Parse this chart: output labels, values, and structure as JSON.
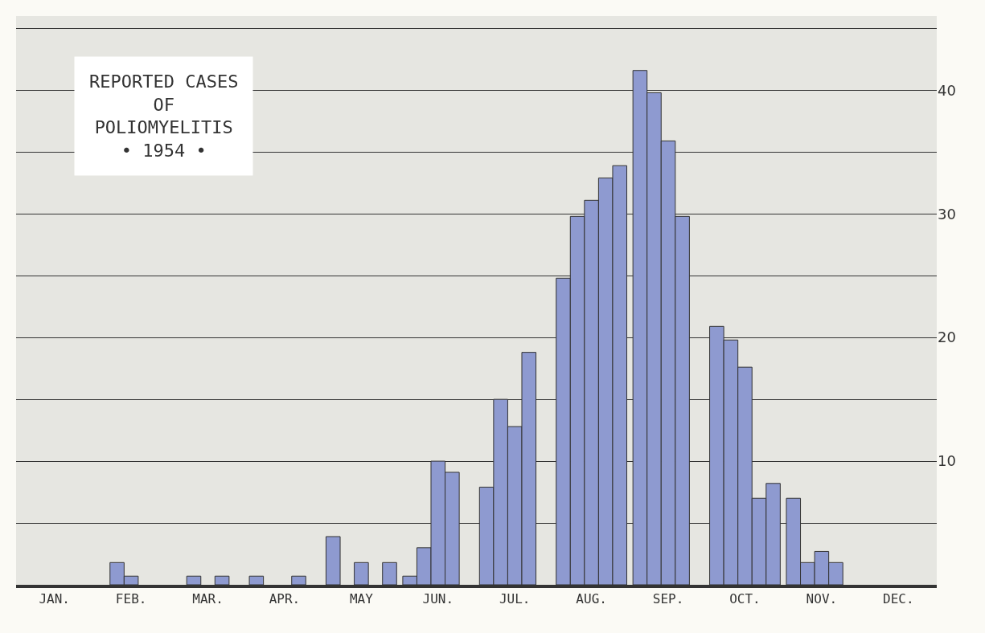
{
  "chart_data": {
    "type": "bar",
    "title": "REPORTED CASES\nOF\nPOLIOMYELITIS\n• 1954 •",
    "categories": [
      "JAN.",
      "FEB.",
      "MAR.",
      "APR.",
      "MAY",
      "JUN.",
      "JUL.",
      "AUG.",
      "SEP.",
      "OCT.",
      "NOV.",
      "DEC."
    ],
    "series": [
      {
        "color": "#8e9ad0",
        "values": [
          null,
          null,
          null,
          0.7,
          3.9,
          0.7,
          7.9,
          24.8,
          41.6,
          20.9,
          7.0,
          null
        ]
      },
      {
        "color": "#8e9ad0",
        "values": [
          null,
          1.8,
          0.7,
          null,
          null,
          3.0,
          15.0,
          29.8,
          39.8,
          19.8,
          1.8,
          null
        ]
      },
      {
        "color": "#8e9ad0",
        "values": [
          null,
          0.7,
          null,
          null,
          1.8,
          10.0,
          12.8,
          31.1,
          35.9,
          17.6,
          2.7,
          null
        ]
      },
      {
        "color": "#8e9ad0",
        "values": [
          null,
          null,
          0.7,
          0.7,
          null,
          9.1,
          18.8,
          32.9,
          29.8,
          7.0,
          1.8,
          null
        ]
      },
      {
        "color": "#8e9ad0",
        "values": [
          null,
          null,
          null,
          null,
          1.8,
          null,
          null,
          33.9,
          null,
          8.2,
          null,
          null
        ]
      }
    ],
    "ylim": [
      0,
      46
    ],
    "yticks": [
      {
        "value": 5,
        "label": null
      },
      10,
      {
        "value": 15,
        "label": null
      },
      20,
      {
        "value": 25,
        "label": null
      },
      30,
      {
        "value": 35,
        "label": null
      },
      40,
      {
        "value": 45,
        "label": null
      }
    ],
    "grid": "y"
  }
}
